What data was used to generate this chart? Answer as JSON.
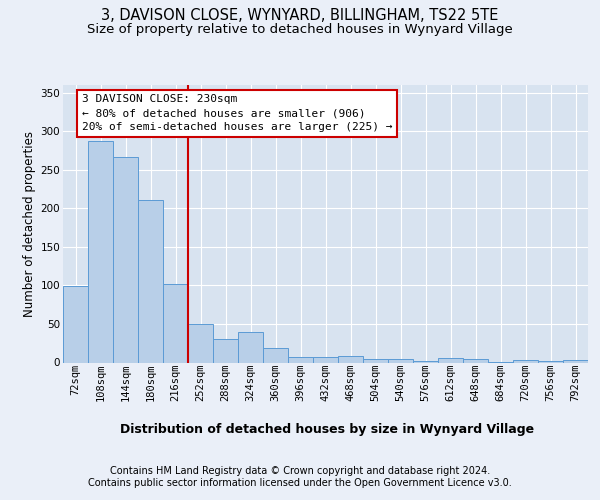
{
  "title_line1": "3, DAVISON CLOSE, WYNYARD, BILLINGHAM, TS22 5TE",
  "title_line2": "Size of property relative to detached houses in Wynyard Village",
  "xlabel": "Distribution of detached houses by size in Wynyard Village",
  "ylabel": "Number of detached properties",
  "footer_line1": "Contains HM Land Registry data © Crown copyright and database right 2024.",
  "footer_line2": "Contains public sector information licensed under the Open Government Licence v3.0.",
  "bar_labels": [
    "72sqm",
    "108sqm",
    "144sqm",
    "180sqm",
    "216sqm",
    "252sqm",
    "288sqm",
    "324sqm",
    "360sqm",
    "396sqm",
    "432sqm",
    "468sqm",
    "504sqm",
    "540sqm",
    "576sqm",
    "612sqm",
    "648sqm",
    "684sqm",
    "720sqm",
    "756sqm",
    "792sqm"
  ],
  "bar_values": [
    99,
    287,
    267,
    211,
    102,
    50,
    30,
    40,
    19,
    7,
    7,
    8,
    5,
    4,
    2,
    6,
    5,
    1,
    3,
    2,
    3
  ],
  "bar_color": "#b8cfe8",
  "bar_edge_color": "#5b9bd5",
  "vline_x": 4.5,
  "vline_color": "#cc0000",
  "annotation_title": "3 DAVISON CLOSE: 230sqm",
  "annotation_line2": "← 80% of detached houses are smaller (906)",
  "annotation_line3": "20% of semi-detached houses are larger (225) →",
  "annotation_box_edgecolor": "#cc0000",
  "ylim": [
    0,
    360
  ],
  "yticks": [
    0,
    50,
    100,
    150,
    200,
    250,
    300,
    350
  ],
  "background_color": "#eaeff8",
  "plot_bg_color": "#d8e3f0",
  "grid_color": "#ffffff",
  "title1_fontsize": 10.5,
  "title2_fontsize": 9.5,
  "ylabel_fontsize": 8.5,
  "xlabel_fontsize": 9,
  "tick_fontsize": 7.5,
  "annotation_fontsize": 8,
  "footer_fontsize": 7
}
